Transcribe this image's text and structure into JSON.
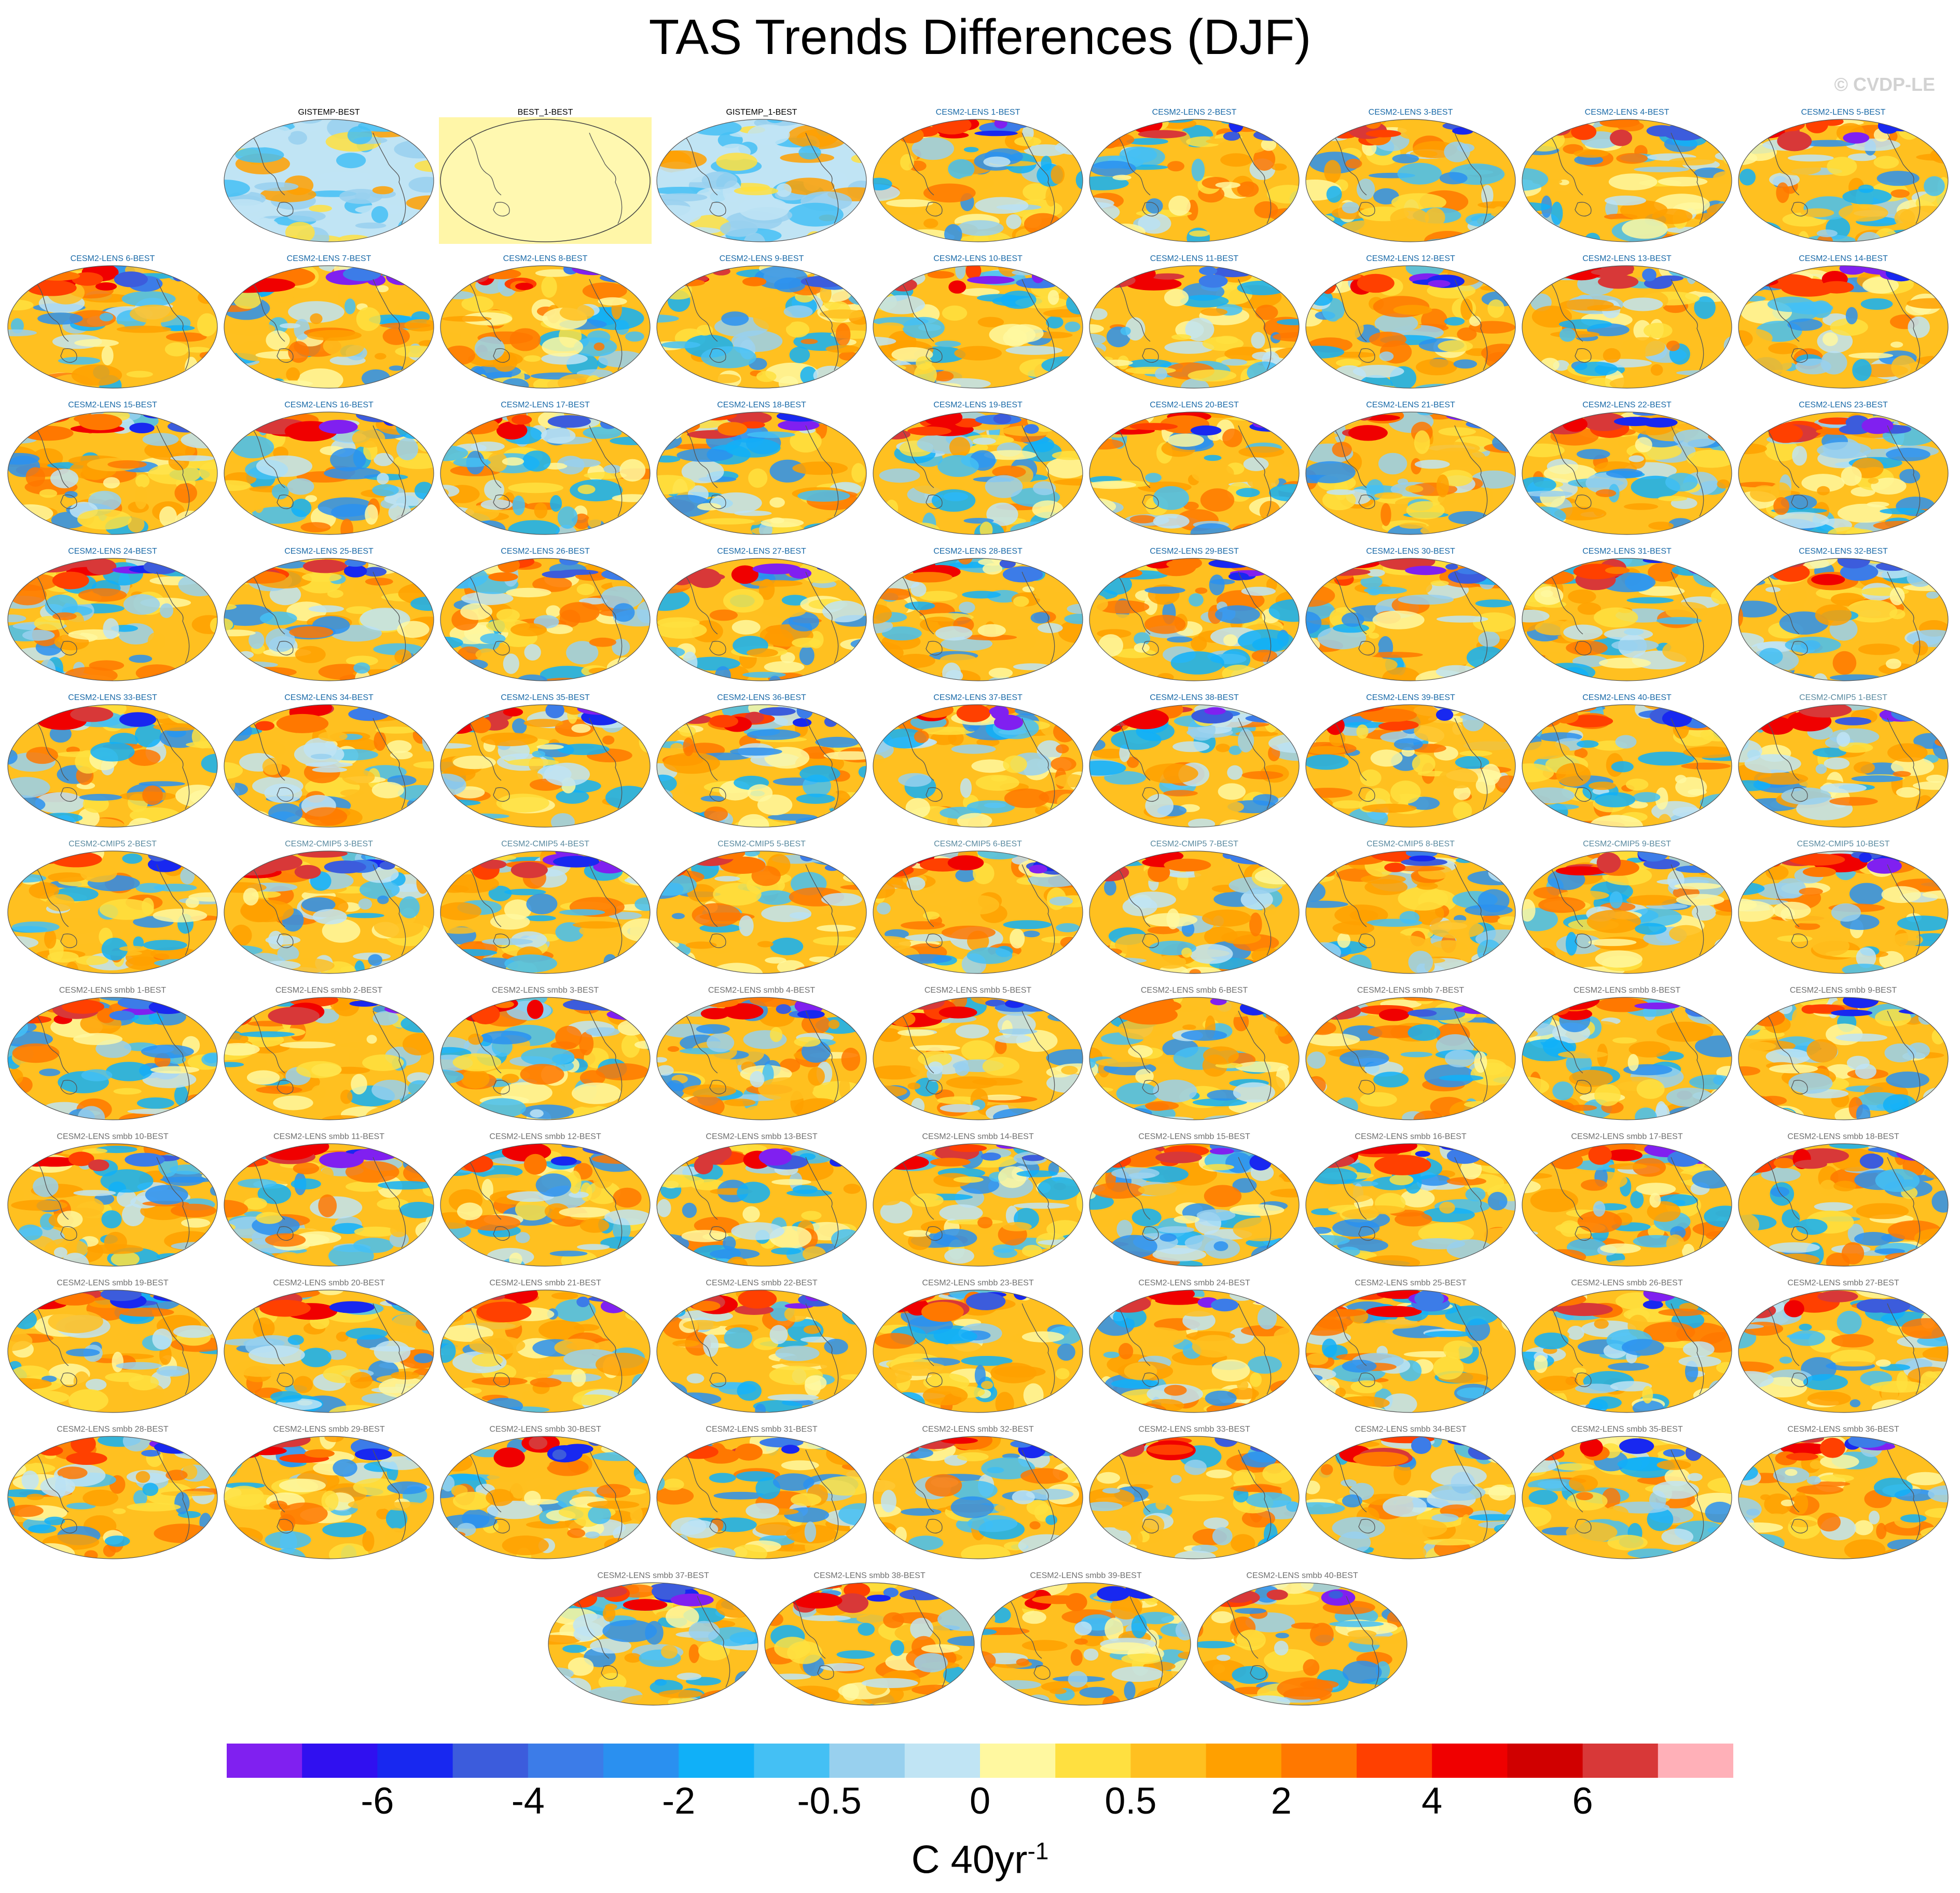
{
  "title": "TAS Trends Differences (DJF)",
  "copyright": "© CVDP-LE",
  "chart_data": {
    "type": "heatmap",
    "title": "TAS Trends Differences (DJF)",
    "projection": "global-ellipse-maps",
    "colorbar": {
      "unit_label": "C 40yr",
      "unit_exponent": "-1",
      "tick_labels": [
        "-6",
        "-4",
        "-2",
        "-0.5",
        "0",
        "0.5",
        "2",
        "4",
        "6"
      ],
      "colors": [
        "#8020f0",
        "#3010f0",
        "#1828f0",
        "#3c5cdc",
        "#3c7ce8",
        "#2a90f0",
        "#10b0f8",
        "#44c0f4",
        "#98d0ee",
        "#c0e4f4",
        "#fff8a0",
        "#ffe040",
        "#ffc020",
        "#ffa000",
        "#ff7800",
        "#ff4000",
        "#f00000",
        "#d00000",
        "#d83838",
        "#ffb0b8"
      ]
    },
    "panels": [
      {
        "label": "GISTEMP-BEST",
        "group": "obs"
      },
      {
        "label": "BEST_1-BEST",
        "group": "obs-self"
      },
      {
        "label": "GISTEMP_1-BEST",
        "group": "obs"
      },
      {
        "label": "CESM2-LENS 1-BEST",
        "group": "lens"
      },
      {
        "label": "CESM2-LENS 2-BEST",
        "group": "lens"
      },
      {
        "label": "CESM2-LENS 3-BEST",
        "group": "lens"
      },
      {
        "label": "CESM2-LENS 4-BEST",
        "group": "lens"
      },
      {
        "label": "CESM2-LENS 5-BEST",
        "group": "lens"
      },
      {
        "label": "CESM2-LENS 6-BEST",
        "group": "lens"
      },
      {
        "label": "CESM2-LENS 7-BEST",
        "group": "lens"
      },
      {
        "label": "CESM2-LENS 8-BEST",
        "group": "lens"
      },
      {
        "label": "CESM2-LENS 9-BEST",
        "group": "lens"
      },
      {
        "label": "CESM2-LENS 10-BEST",
        "group": "lens"
      },
      {
        "label": "CESM2-LENS 11-BEST",
        "group": "lens"
      },
      {
        "label": "CESM2-LENS 12-BEST",
        "group": "lens"
      },
      {
        "label": "CESM2-LENS 13-BEST",
        "group": "lens"
      },
      {
        "label": "CESM2-LENS 14-BEST",
        "group": "lens"
      },
      {
        "label": "CESM2-LENS 15-BEST",
        "group": "lens"
      },
      {
        "label": "CESM2-LENS 16-BEST",
        "group": "lens"
      },
      {
        "label": "CESM2-LENS 17-BEST",
        "group": "lens"
      },
      {
        "label": "CESM2-LENS 18-BEST",
        "group": "lens"
      },
      {
        "label": "CESM2-LENS 19-BEST",
        "group": "lens"
      },
      {
        "label": "CESM2-LENS 20-BEST",
        "group": "lens"
      },
      {
        "label": "CESM2-LENS 21-BEST",
        "group": "lens"
      },
      {
        "label": "CESM2-LENS 22-BEST",
        "group": "lens"
      },
      {
        "label": "CESM2-LENS 23-BEST",
        "group": "lens"
      },
      {
        "label": "CESM2-LENS 24-BEST",
        "group": "lens"
      },
      {
        "label": "CESM2-LENS 25-BEST",
        "group": "lens"
      },
      {
        "label": "CESM2-LENS 26-BEST",
        "group": "lens"
      },
      {
        "label": "CESM2-LENS 27-BEST",
        "group": "lens"
      },
      {
        "label": "CESM2-LENS 28-BEST",
        "group": "lens"
      },
      {
        "label": "CESM2-LENS 29-BEST",
        "group": "lens"
      },
      {
        "label": "CESM2-LENS 30-BEST",
        "group": "lens"
      },
      {
        "label": "CESM2-LENS 31-BEST",
        "group": "lens"
      },
      {
        "label": "CESM2-LENS 32-BEST",
        "group": "lens"
      },
      {
        "label": "CESM2-LENS 33-BEST",
        "group": "lens"
      },
      {
        "label": "CESM2-LENS 34-BEST",
        "group": "lens"
      },
      {
        "label": "CESM2-LENS 35-BEST",
        "group": "lens"
      },
      {
        "label": "CESM2-LENS 36-BEST",
        "group": "lens"
      },
      {
        "label": "CESM2-LENS 37-BEST",
        "group": "lens"
      },
      {
        "label": "CESM2-LENS 38-BEST",
        "group": "lens"
      },
      {
        "label": "CESM2-LENS 39-BEST",
        "group": "lens"
      },
      {
        "label": "CESM2-LENS 40-BEST",
        "group": "lens"
      },
      {
        "label": "CESM2-CMIP5 1-BEST",
        "group": "cmip5"
      },
      {
        "label": "CESM2-CMIP5 2-BEST",
        "group": "cmip5"
      },
      {
        "label": "CESM2-CMIP5 3-BEST",
        "group": "cmip5"
      },
      {
        "label": "CESM2-CMIP5 4-BEST",
        "group": "cmip5"
      },
      {
        "label": "CESM2-CMIP5 5-BEST",
        "group": "cmip5"
      },
      {
        "label": "CESM2-CMIP5 6-BEST",
        "group": "cmip5"
      },
      {
        "label": "CESM2-CMIP5 7-BEST",
        "group": "cmip5"
      },
      {
        "label": "CESM2-CMIP5 8-BEST",
        "group": "cmip5"
      },
      {
        "label": "CESM2-CMIP5 9-BEST",
        "group": "cmip5"
      },
      {
        "label": "CESM2-CMIP5 10-BEST",
        "group": "cmip5"
      },
      {
        "label": "CESM2-LENS smbb 1-BEST",
        "group": "smbb"
      },
      {
        "label": "CESM2-LENS smbb 2-BEST",
        "group": "smbb"
      },
      {
        "label": "CESM2-LENS smbb 3-BEST",
        "group": "smbb"
      },
      {
        "label": "CESM2-LENS smbb 4-BEST",
        "group": "smbb"
      },
      {
        "label": "CESM2-LENS smbb 5-BEST",
        "group": "smbb"
      },
      {
        "label": "CESM2-LENS smbb 6-BEST",
        "group": "smbb"
      },
      {
        "label": "CESM2-LENS smbb 7-BEST",
        "group": "smbb"
      },
      {
        "label": "CESM2-LENS smbb 8-BEST",
        "group": "smbb"
      },
      {
        "label": "CESM2-LENS smbb 9-BEST",
        "group": "smbb"
      },
      {
        "label": "CESM2-LENS smbb 10-BEST",
        "group": "smbb"
      },
      {
        "label": "CESM2-LENS smbb 11-BEST",
        "group": "smbb"
      },
      {
        "label": "CESM2-LENS smbb 12-BEST",
        "group": "smbb"
      },
      {
        "label": "CESM2-LENS smbb 13-BEST",
        "group": "smbb"
      },
      {
        "label": "CESM2-LENS smbb 14-BEST",
        "group": "smbb"
      },
      {
        "label": "CESM2-LENS smbb 15-BEST",
        "group": "smbb"
      },
      {
        "label": "CESM2-LENS smbb 16-BEST",
        "group": "smbb"
      },
      {
        "label": "CESM2-LENS smbb 17-BEST",
        "group": "smbb"
      },
      {
        "label": "CESM2-LENS smbb 18-BEST",
        "group": "smbb"
      },
      {
        "label": "CESM2-LENS smbb 19-BEST",
        "group": "smbb"
      },
      {
        "label": "CESM2-LENS smbb 20-BEST",
        "group": "smbb"
      },
      {
        "label": "CESM2-LENS smbb 21-BEST",
        "group": "smbb"
      },
      {
        "label": "CESM2-LENS smbb 22-BEST",
        "group": "smbb"
      },
      {
        "label": "CESM2-LENS smbb 23-BEST",
        "group": "smbb"
      },
      {
        "label": "CESM2-LENS smbb 24-BEST",
        "group": "smbb"
      },
      {
        "label": "CESM2-LENS smbb 25-BEST",
        "group": "smbb"
      },
      {
        "label": "CESM2-LENS smbb 26-BEST",
        "group": "smbb"
      },
      {
        "label": "CESM2-LENS smbb 27-BEST",
        "group": "smbb"
      },
      {
        "label": "CESM2-LENS smbb 28-BEST",
        "group": "smbb"
      },
      {
        "label": "CESM2-LENS smbb 29-BEST",
        "group": "smbb"
      },
      {
        "label": "CESM2-LENS smbb 30-BEST",
        "group": "smbb"
      },
      {
        "label": "CESM2-LENS smbb 31-BEST",
        "group": "smbb"
      },
      {
        "label": "CESM2-LENS smbb 32-BEST",
        "group": "smbb"
      },
      {
        "label": "CESM2-LENS smbb 33-BEST",
        "group": "smbb"
      },
      {
        "label": "CESM2-LENS smbb 34-BEST",
        "group": "smbb"
      },
      {
        "label": "CESM2-LENS smbb 35-BEST",
        "group": "smbb"
      },
      {
        "label": "CESM2-LENS smbb 36-BEST",
        "group": "smbb"
      },
      {
        "label": "CESM2-LENS smbb 37-BEST",
        "group": "smbb"
      },
      {
        "label": "CESM2-LENS smbb 38-BEST",
        "group": "smbb"
      },
      {
        "label": "CESM2-LENS smbb 39-BEST",
        "group": "smbb"
      },
      {
        "label": "CESM2-LENS smbb 40-BEST",
        "group": "smbb"
      }
    ]
  },
  "label_colors": {
    "obs": "#000000",
    "lens": "#1a6aa8",
    "cmip5": "#5a8aa0",
    "smbb": "#707070"
  }
}
